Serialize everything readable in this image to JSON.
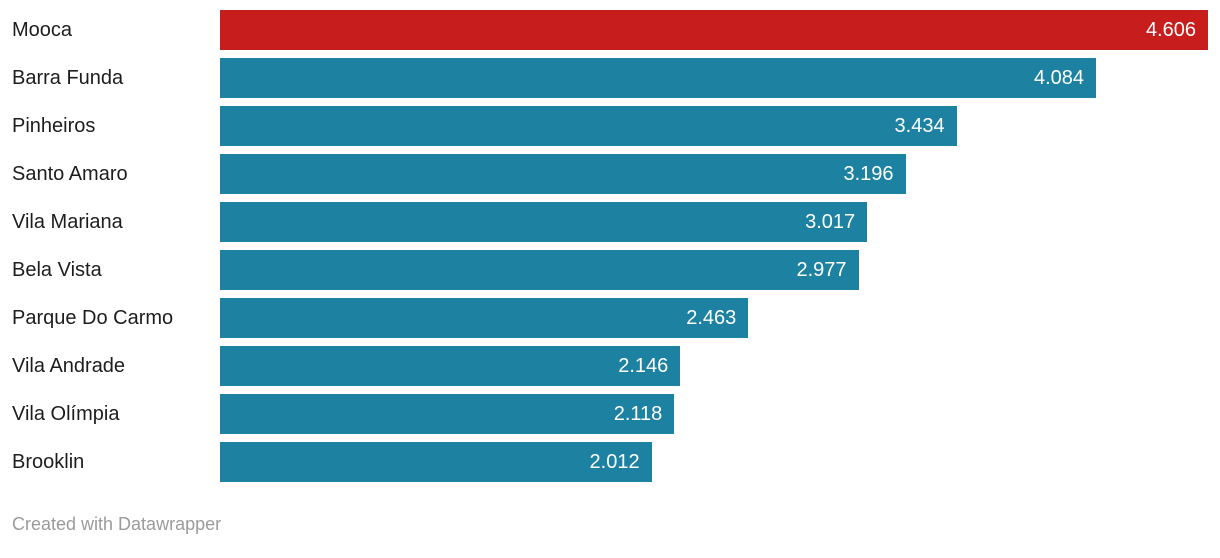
{
  "chart_data": {
    "type": "bar",
    "orientation": "horizontal",
    "title": "",
    "xlabel": "",
    "ylabel": "",
    "xlim": [
      0,
      4606
    ],
    "grid": false,
    "legend": false,
    "categories": [
      "Mooca",
      "Barra Funda",
      "Pinheiros",
      "Santo Amaro",
      "Vila Mariana",
      "Bela Vista",
      "Parque Do Carmo",
      "Vila Andrade",
      "Vila Olímpia",
      "Brooklin"
    ],
    "values": [
      4606,
      4084,
      3434,
      3196,
      3017,
      2977,
      2463,
      2146,
      2118,
      2012
    ],
    "value_labels": [
      "4.606",
      "4.084",
      "3.434",
      "3.196",
      "3.017",
      "2.977",
      "2.463",
      "2.146",
      "2.118",
      "2.012"
    ],
    "bar_colors": [
      "#c71e1d",
      "#1d81a2",
      "#1d81a2",
      "#1d81a2",
      "#1d81a2",
      "#1d81a2",
      "#1d81a2",
      "#1d81a2",
      "#1d81a2",
      "#1d81a2"
    ],
    "highlighted_category": "Mooca"
  },
  "colors": {
    "highlight": "#c71e1d",
    "default_bar": "#1d81a2",
    "category_text": "#1d1d1d",
    "value_text": "#ffffff",
    "attribution_text": "#9b9b9b",
    "background": "#ffffff"
  },
  "footer": {
    "attribution": "Created with Datawrapper"
  }
}
